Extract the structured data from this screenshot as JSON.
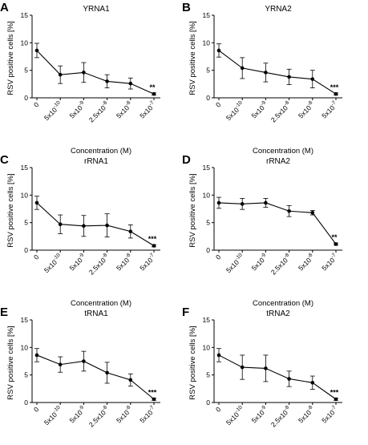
{
  "xlabel": "Concentration (M)",
  "ylabel": "RSV positive cells [%]",
  "x_categories": [
    "0",
    "5x10^-10",
    "5x10^-9",
    "2.5x10^-8",
    "5x10^-8",
    "5x10^-7"
  ],
  "y_ticks": [
    "0",
    "5",
    "10",
    "15"
  ],
  "chart_data": [
    {
      "type": "line",
      "letter": "A",
      "title": "YRNA1",
      "categories": [
        "0",
        "5x10^-10",
        "5x10^-9",
        "2.5x10^-8",
        "5x10^-8",
        "5x10^-7"
      ],
      "values": [
        8.6,
        4.2,
        4.6,
        3.0,
        2.6,
        0.7
      ],
      "errors": [
        1.3,
        1.6,
        1.8,
        1.2,
        1.0,
        0.2
      ],
      "ylim": [
        0,
        15
      ],
      "significance": "**",
      "xlabel": "Concentration (M)",
      "ylabel": "RSV positive cells [%]"
    },
    {
      "type": "line",
      "letter": "B",
      "title": "YRNA2",
      "categories": [
        "0",
        "5x10^-10",
        "5x10^-9",
        "2.5x10^-8",
        "5x10^-8",
        "5x10^-7"
      ],
      "values": [
        8.6,
        5.4,
        4.6,
        3.8,
        3.4,
        0.7
      ],
      "errors": [
        1.2,
        1.9,
        1.7,
        1.4,
        1.6,
        0.2
      ],
      "ylim": [
        0,
        15
      ],
      "significance": "***",
      "xlabel": "Concentration (M)",
      "ylabel": "RSV positive cells [%]"
    },
    {
      "type": "line",
      "letter": "C",
      "title": "rRNA1",
      "categories": [
        "0",
        "5x10^-10",
        "5x10^-9",
        "2.5x10^-8",
        "5x10^-8",
        "5x10^-7"
      ],
      "values": [
        8.6,
        4.7,
        4.4,
        4.5,
        3.4,
        0.8
      ],
      "errors": [
        1.2,
        1.7,
        1.9,
        2.1,
        1.2,
        0.2
      ],
      "ylim": [
        0,
        15
      ],
      "significance": "***",
      "xlabel": "Concentration (M)",
      "ylabel": "RSV positive cells [%]"
    },
    {
      "type": "line",
      "letter": "D",
      "title": "rRNA2",
      "categories": [
        "0",
        "5x10^-10",
        "5x10^-9",
        "2.5x10^-8",
        "5x10^-8",
        "5x10^-7"
      ],
      "values": [
        8.6,
        8.4,
        8.6,
        7.1,
        6.8,
        1.1
      ],
      "errors": [
        1.0,
        1.0,
        0.8,
        1.0,
        0.4,
        0.2
      ],
      "ylim": [
        0,
        15
      ],
      "significance": "**",
      "xlabel": "Concentration (M)",
      "ylabel": "RSV positive cells [%]"
    },
    {
      "type": "line",
      "letter": "E",
      "title": "tRNA1",
      "categories": [
        "0",
        "5x10^-10",
        "5x10^-9",
        "2.5x10^-8",
        "5x10^-8",
        "5x10^-7"
      ],
      "values": [
        8.6,
        6.9,
        7.5,
        5.4,
        4.1,
        0.6
      ],
      "errors": [
        1.2,
        1.4,
        1.8,
        1.9,
        1.1,
        0.2
      ],
      "ylim": [
        0,
        15
      ],
      "significance": "***",
      "xlabel": "Concentration (M)",
      "ylabel": "RSV positive cells [%]"
    },
    {
      "type": "line",
      "letter": "F",
      "title": "tRNA2",
      "categories": [
        "0",
        "5x10^-10",
        "5x10^-9",
        "2.5x10^-8",
        "5x10^-8",
        "5x10^-7"
      ],
      "values": [
        8.6,
        6.4,
        6.2,
        4.3,
        3.6,
        0.6
      ],
      "errors": [
        1.2,
        2.2,
        2.4,
        1.4,
        1.2,
        0.2
      ],
      "ylim": [
        0,
        15
      ],
      "significance": "***",
      "xlabel": "Concentration (M)",
      "ylabel": "RSV positive cells [%]"
    }
  ]
}
